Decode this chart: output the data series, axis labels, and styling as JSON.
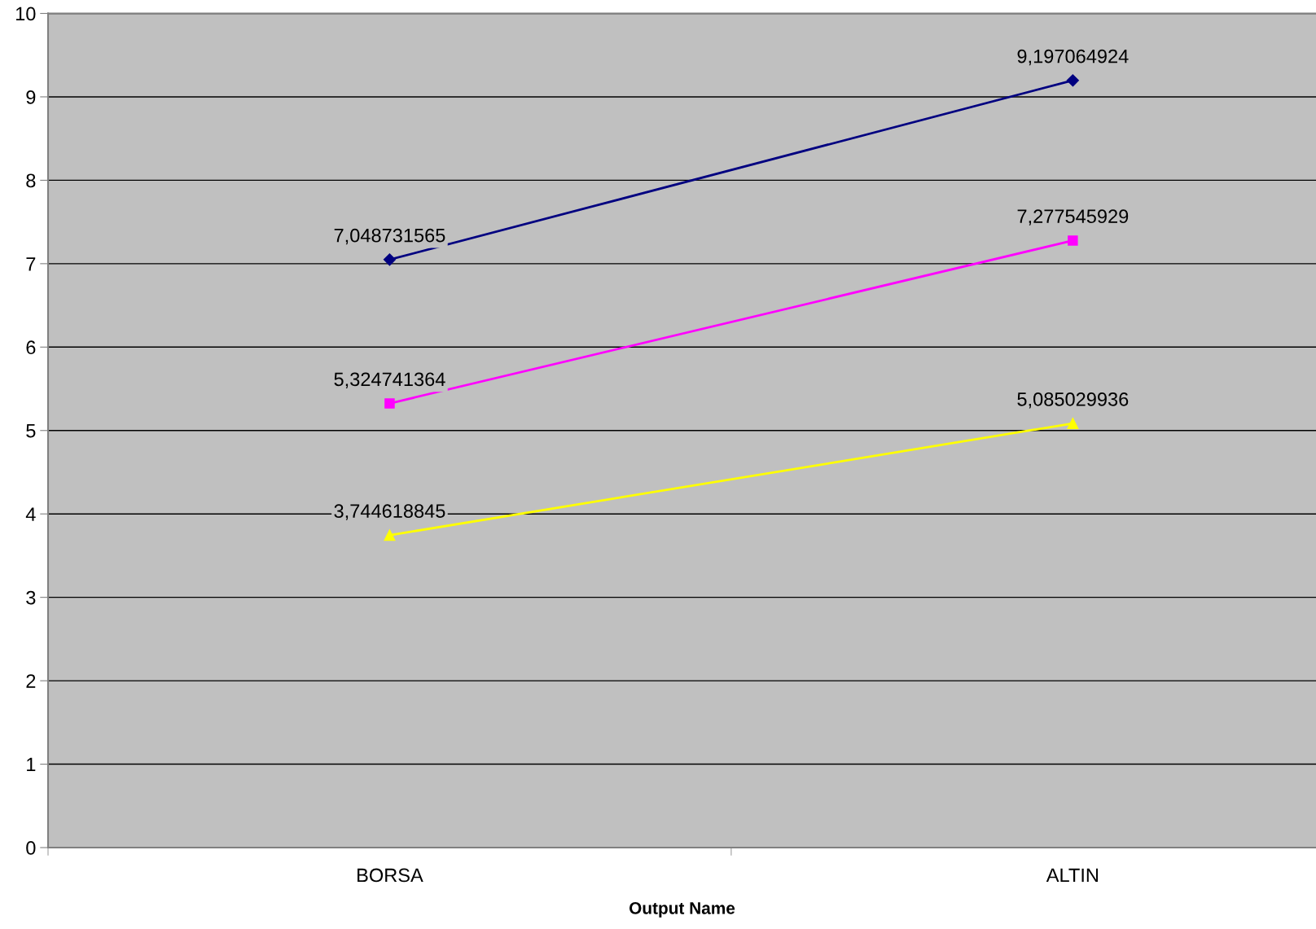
{
  "chart_data": {
    "type": "line",
    "xlabel": "Output Name",
    "categories": [
      "BORSA",
      "ALTIN"
    ],
    "series": [
      {
        "color": "#000080",
        "marker": "diamond",
        "values": [
          7.048731565,
          9.197064924
        ],
        "value_labels": [
          "7,048731565",
          "9,197064924"
        ]
      },
      {
        "color": "#ff00ff",
        "marker": "square",
        "values": [
          5.324741364,
          7.277545929
        ],
        "value_labels": [
          "5,324741364",
          "7,277545929"
        ]
      },
      {
        "color": "#ffff00",
        "marker": "triangle",
        "values": [
          3.744618845,
          5.085029936
        ],
        "value_labels": [
          "3,744618845",
          "5,085029936"
        ]
      }
    ],
    "ylim": [
      0,
      10
    ],
    "yticks": [
      0,
      1,
      2,
      3,
      4,
      5,
      6,
      7,
      8,
      9,
      10
    ],
    "grid": "y",
    "legend": false
  }
}
